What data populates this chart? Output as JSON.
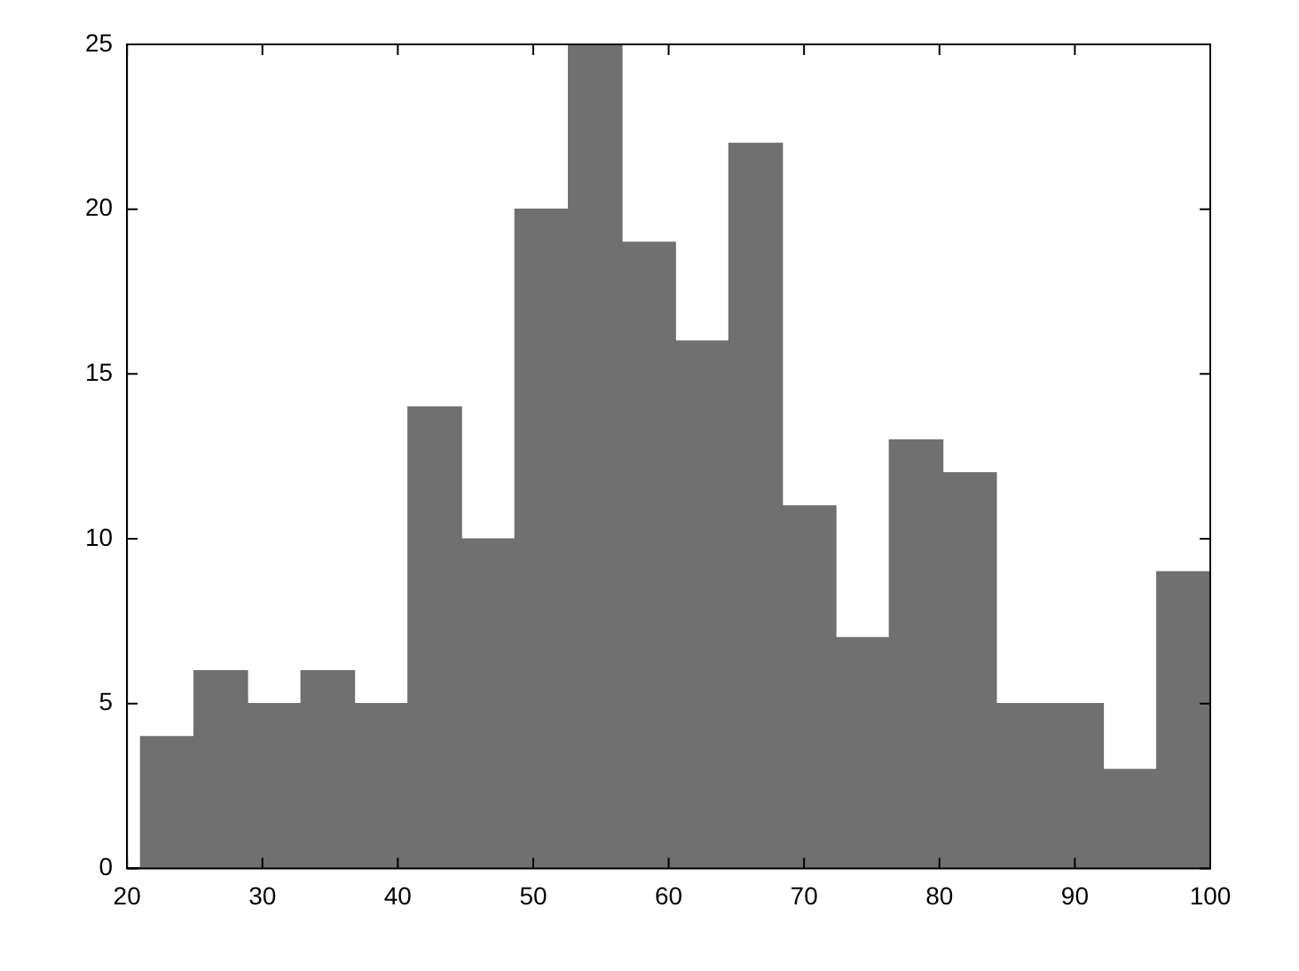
{
  "chart_data": {
    "type": "histogram",
    "bins": [
      21,
      24.95,
      28.9,
      32.85,
      36.8,
      40.75,
      44.7,
      48.65,
      52.6,
      56.55,
      60.5,
      64.45,
      68.4,
      72.35,
      76.3,
      80.25,
      84.2,
      88.15,
      92.1,
      96.05,
      100
    ],
    "values": [
      4,
      6,
      5,
      6,
      5,
      14,
      10,
      20,
      25,
      19,
      16,
      22,
      11,
      7,
      13,
      12,
      5,
      5,
      3,
      9
    ],
    "color": "#707070",
    "xlim": [
      20,
      100
    ],
    "xticks": [
      20,
      30,
      40,
      50,
      60,
      70,
      80,
      90,
      100
    ],
    "ylim": [
      0,
      25
    ],
    "yticks": [
      0,
      5,
      10,
      15,
      20,
      25
    ],
    "grid": false,
    "legend": false
  }
}
